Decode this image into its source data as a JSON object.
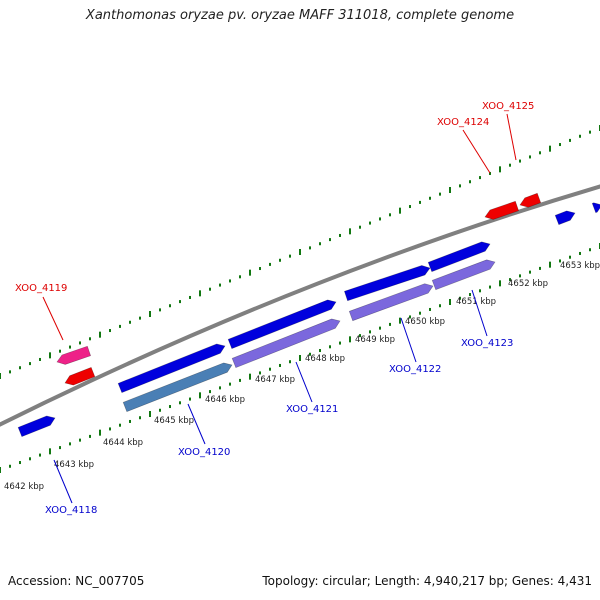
{
  "title": "Xanthomonas oryzae pv. oryzae MAFF 311018, complete genome",
  "footer": {
    "accession": "Accession: NC_007705",
    "summary": "Topology: circular; Length: 4,940,217 bp; Genes: 4,431"
  },
  "axis_ticks": [
    "4642 kbp",
    "4643 kbp",
    "4644 kbp",
    "4645 kbp",
    "4646 kbp",
    "4647 kbp",
    "4648 kbp",
    "4649 kbp",
    "4650 kbp",
    "4651 kbp",
    "4652 kbp",
    "4653 kbp"
  ],
  "genes": [
    {
      "id": "XOO_4118",
      "strand": "forward",
      "color": "#0000dd"
    },
    {
      "id": "XOO_4119",
      "strand": "reverse",
      "color": "#ee2288"
    },
    {
      "id": "XOO_4120",
      "strand": "forward",
      "color": "#4a7fb5"
    },
    {
      "id": "XOO_4121",
      "strand": "forward",
      "color": "#7b68dd"
    },
    {
      "id": "XOO_4122",
      "strand": "forward",
      "color": "#7b68dd"
    },
    {
      "id": "XOO_4123",
      "strand": "forward",
      "color": "#7b68dd"
    },
    {
      "id": "XOO_4124",
      "strand": "reverse",
      "color": "#ee0000"
    },
    {
      "id": "XOO_4125",
      "strand": "reverse",
      "color": "#ee0000"
    }
  ],
  "colors": {
    "forward_label": "#0000cc",
    "reverse_label": "#dd0000",
    "backbone": "#808080",
    "ticks": "#117711"
  }
}
